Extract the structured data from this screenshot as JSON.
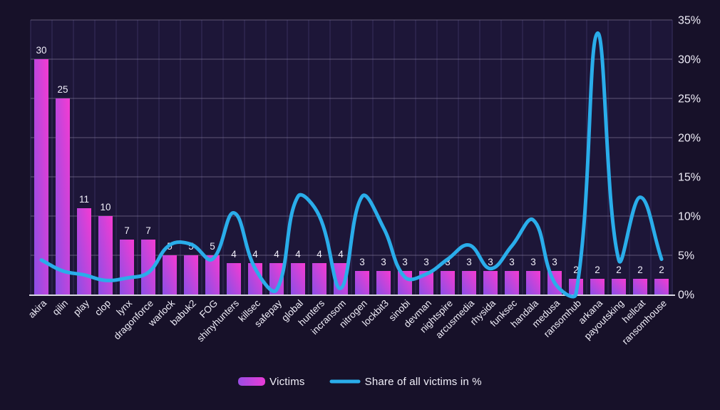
{
  "chart_data": {
    "type": "bar",
    "title": "",
    "categories": [
      "akira",
      "qilin",
      "play",
      "clop",
      "lynx",
      "dragonforce",
      "warlock",
      "babuk2",
      "FOG",
      "shinyhunters",
      "killsec",
      "safepay",
      "global",
      "hunters",
      "incransom",
      "nitrogen",
      "lockbit3",
      "sinobi",
      "devman",
      "nightspire",
      "arcusmedia",
      "rhysida",
      "funksec",
      "handala",
      "medusa",
      "ransomhub",
      "arkana",
      "payoutsking",
      "hellcat",
      "ransomhouse"
    ],
    "series": [
      {
        "name": "Victims",
        "type": "bar",
        "values": [
          30,
          25,
          11,
          10,
          7,
          7,
          5,
          5,
          5,
          4,
          4,
          4,
          4,
          4,
          4,
          3,
          3,
          3,
          3,
          3,
          3,
          3,
          3,
          3,
          3,
          2,
          2,
          2,
          2,
          2
        ]
      },
      {
        "name": "Share of all victims in %",
        "type": "line",
        "values": [
          4.4,
          3.0,
          2.5,
          1.8,
          2.1,
          2.8,
          6.3,
          6.4,
          4.5,
          10.4,
          3.3,
          0.6,
          12.5,
          10.0,
          0.8,
          12.5,
          8.5,
          2.2,
          2.6,
          4.5,
          6.3,
          3.3,
          6.2,
          9.5,
          1.5,
          0.1,
          33.3,
          4.4,
          12.4,
          4.5
        ]
      }
    ],
    "y_right_axis": {
      "min": 0,
      "max": 35,
      "ticks": [
        "0%",
        "5%",
        "10%",
        "15%",
        "20%",
        "25%",
        "30%",
        "35%"
      ]
    },
    "x_axis_rotation_deg": -45,
    "grid": true,
    "legend_position": "bottom",
    "bar_value_labels_shown": true
  },
  "legend": {
    "items": [
      {
        "label": "Victims",
        "swatch": "bar-gradient"
      },
      {
        "label": "Share of all victims in %",
        "swatch": "line"
      }
    ]
  },
  "colors": {
    "background": "#171129",
    "plot_background": "#1d1638",
    "bar_gradient_start": "#8a4fe6",
    "bar_gradient_end": "#f53bd2",
    "line": "#2aadea",
    "grid_vertical": "#2e2750",
    "grid_horizontal": "#7d7994",
    "axis_baseline": "#d8d7e2",
    "text": "#efedf8"
  }
}
